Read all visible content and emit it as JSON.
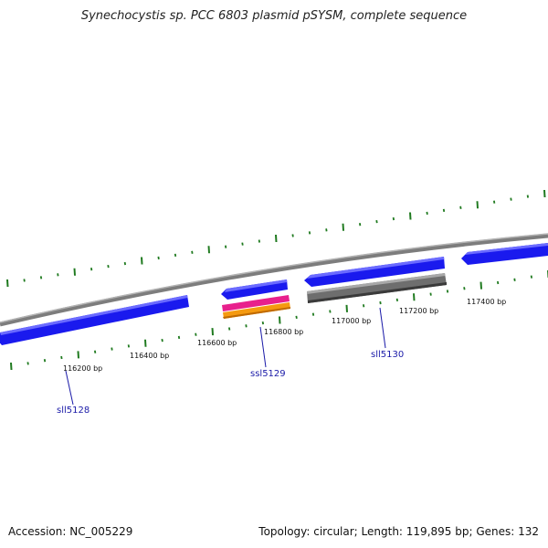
{
  "title": "Synechocystis sp. PCC 6803 plasmid pSYSM, complete sequence",
  "accession": "Accession: NC_005229",
  "summary": "Topology: circular; Length: 119,895 bp; Genes: 132",
  "scale": {
    "labels": [
      "116200 bp",
      "116400 bp",
      "116600 bp",
      "116800 bp",
      "117000 bp",
      "117200 bp",
      "117400 bp"
    ]
  },
  "genes": {
    "sll5128": "sll5128",
    "ssl5129": "ssl5129",
    "sll5130": "sll5130"
  },
  "colors": {
    "backbone": "#8a8a8a",
    "cds": "#1a1aee",
    "pink": "#e8208c",
    "orange": "#f59a10",
    "gray_feature": "#707070",
    "tick": "#1f7a1f",
    "label": "#1a1aa8"
  }
}
